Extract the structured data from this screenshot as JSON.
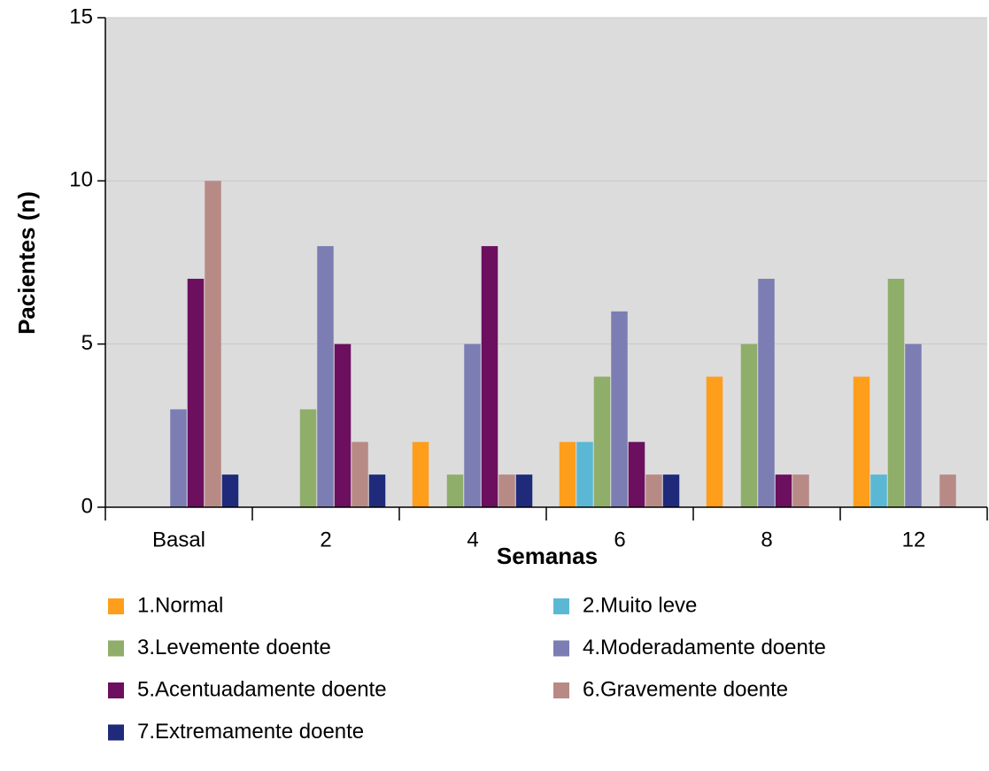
{
  "chart_data": {
    "type": "bar",
    "x_label": "Semanas",
    "y_label": "Pacientes (n)",
    "categories": [
      "Basal",
      "2",
      "4",
      "6",
      "8",
      "12"
    ],
    "series": [
      {
        "name": "1.Normal",
        "color": "#ff9e1b",
        "values": [
          0,
          0,
          2,
          2,
          4,
          4
        ]
      },
      {
        "name": "2.Muito leve",
        "color": "#5bb8d4",
        "values": [
          0,
          0,
          0,
          2,
          0,
          1
        ]
      },
      {
        "name": "3.Levemente doente",
        "color": "#8fae6a",
        "values": [
          0,
          3,
          1,
          4,
          5,
          7
        ]
      },
      {
        "name": "4.Moderadamente doente",
        "color": "#7b7db3",
        "values": [
          3,
          8,
          5,
          6,
          7,
          5
        ]
      },
      {
        "name": "5.Acentuadamente doente",
        "color": "#6b0f5e",
        "values": [
          7,
          5,
          8,
          2,
          1,
          0
        ]
      },
      {
        "name": "6.Gravemente doente",
        "color": "#b88a86",
        "values": [
          10,
          2,
          1,
          1,
          1,
          1
        ]
      },
      {
        "name": "7.Extremamente doente",
        "color": "#1f2a7a",
        "values": [
          1,
          1,
          1,
          1,
          0,
          0
        ]
      }
    ],
    "ylim": [
      0,
      15
    ],
    "yticks": [
      0,
      5,
      10,
      15
    ],
    "grid": true,
    "background": "#dcdcdc"
  }
}
